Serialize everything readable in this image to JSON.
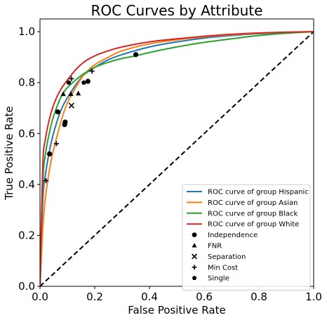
{
  "chart_data": {
    "type": "line",
    "title": "ROC Curves by Attribute",
    "xlabel": "False Positive Rate",
    "ylabel": "True Positive Rate",
    "xlim": [
      0.0,
      1.0
    ],
    "ylim": [
      0.0,
      1.05
    ],
    "x_ticks": [
      "0.0",
      "0.2",
      "0.4",
      "0.6",
      "0.8",
      "1.0"
    ],
    "y_ticks": [
      "0.0",
      "0.2",
      "0.4",
      "0.6",
      "0.8",
      "1.0"
    ],
    "grid": false,
    "legend_position": "lower right",
    "series": [
      {
        "name": "ROC curve of group Hispanic",
        "color": "#1f77b4",
        "x": [
          0,
          0.01,
          0.02,
          0.04,
          0.06,
          0.08,
          0.1,
          0.13,
          0.16,
          0.2,
          0.25,
          0.3,
          0.4,
          0.5,
          0.6,
          0.7,
          0.8,
          0.9,
          1.0
        ],
        "y": [
          0,
          0.33,
          0.44,
          0.56,
          0.64,
          0.7,
          0.74,
          0.79,
          0.83,
          0.86,
          0.89,
          0.91,
          0.94,
          0.96,
          0.975,
          0.985,
          0.992,
          0.997,
          1.0
        ]
      },
      {
        "name": "ROC curve of group Asian",
        "color": "#ff7f0e",
        "x": [
          0,
          0.01,
          0.02,
          0.04,
          0.06,
          0.08,
          0.1,
          0.13,
          0.16,
          0.2,
          0.25,
          0.3,
          0.4,
          0.5,
          0.6,
          0.7,
          0.8,
          0.9,
          1.0
        ],
        "y": [
          0,
          0.22,
          0.35,
          0.49,
          0.58,
          0.66,
          0.72,
          0.78,
          0.83,
          0.87,
          0.9,
          0.925,
          0.952,
          0.968,
          0.98,
          0.988,
          0.994,
          0.998,
          1.0
        ]
      },
      {
        "name": "ROC curve of group Black",
        "color": "#2ca02c",
        "x": [
          0,
          0.01,
          0.02,
          0.04,
          0.06,
          0.08,
          0.1,
          0.13,
          0.16,
          0.2,
          0.25,
          0.3,
          0.35,
          0.4,
          0.5,
          0.6,
          0.7,
          0.8,
          0.9,
          1.0
        ],
        "y": [
          0,
          0.4,
          0.52,
          0.63,
          0.7,
          0.75,
          0.78,
          0.81,
          0.835,
          0.86,
          0.88,
          0.895,
          0.905,
          0.918,
          0.94,
          0.958,
          0.972,
          0.985,
          0.994,
          1.0
        ]
      },
      {
        "name": "ROC curve of group White",
        "color": "#d62728",
        "x": [
          0,
          0.01,
          0.02,
          0.04,
          0.06,
          0.08,
          0.1,
          0.13,
          0.16,
          0.2,
          0.25,
          0.3,
          0.4,
          0.5,
          0.6,
          0.7,
          0.8,
          0.9,
          1.0
        ],
        "y": [
          0,
          0.47,
          0.58,
          0.68,
          0.74,
          0.78,
          0.81,
          0.85,
          0.88,
          0.905,
          0.925,
          0.94,
          0.96,
          0.972,
          0.982,
          0.99,
          0.995,
          0.998,
          1.0
        ]
      }
    ],
    "reference_line": {
      "x": [
        0,
        1
      ],
      "y": [
        0,
        1
      ],
      "style": "dashed",
      "color": "#000000"
    },
    "markers": [
      {
        "name": "Independence",
        "shape": "circle",
        "points": [
          [
            0.035,
            0.52
          ],
          [
            0.065,
            0.685
          ],
          [
            0.09,
            0.635
          ],
          [
            0.092,
            0.645
          ],
          [
            0.175,
            0.805
          ],
          [
            0.35,
            0.91
          ]
        ]
      },
      {
        "name": "FNR",
        "shape": "triangle",
        "points": [
          [
            0.085,
            0.755
          ],
          [
            0.113,
            0.755
          ],
          [
            0.14,
            0.757
          ]
        ]
      },
      {
        "name": "Separation",
        "shape": "x",
        "points": [
          [
            0.115,
            0.71
          ]
        ]
      },
      {
        "name": "Min Cost",
        "shape": "plus",
        "points": [
          [
            0.022,
            0.415
          ],
          [
            0.06,
            0.56
          ],
          [
            0.115,
            0.815
          ],
          [
            0.19,
            0.845
          ]
        ]
      },
      {
        "name": "Single",
        "shape": "pentagon",
        "points": [
          [
            0.105,
            0.8
          ],
          [
            0.16,
            0.8
          ]
        ]
      }
    ]
  }
}
